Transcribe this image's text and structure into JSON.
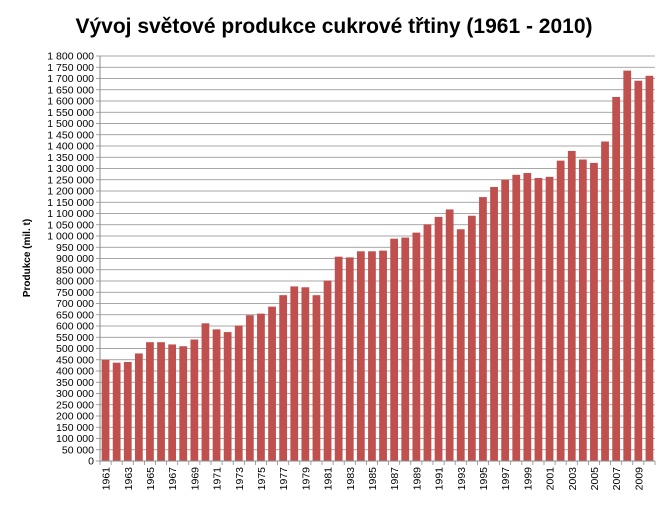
{
  "chart_data": {
    "type": "bar",
    "title": "Vývoj světové produkce cukrové třtiny (1961 - 2010)",
    "xlabel": "",
    "ylabel": "Produkce  (mil. t)",
    "ylim": [
      0,
      1800000
    ],
    "y_tick_step": 50000,
    "y_tick_labels": [
      "0",
      "50 000",
      "100 000",
      "150 000",
      "200 000",
      "250 000",
      "300 000",
      "350 000",
      "400 000",
      "450 000",
      "500 000",
      "550 000",
      "600 000",
      "650 000",
      "700 000",
      "750 000",
      "800 000",
      "850 000",
      "900 000",
      "950 000",
      "1 000 000",
      "1 050 000",
      "1 100 000",
      "1 150 000",
      "1 200 000",
      "1 250 000",
      "1 300 000",
      "1 350 000",
      "1 400 000",
      "1 450 000",
      "1 500 000",
      "1 550 000",
      "1 600 000",
      "1 650 000",
      "1 700 000",
      "1 750 000",
      "1 800 000"
    ],
    "categories": [
      "1961",
      "1962",
      "1963",
      "1964",
      "1965",
      "1966",
      "1967",
      "1968",
      "1969",
      "1970",
      "1971",
      "1972",
      "1973",
      "1974",
      "1975",
      "1976",
      "1977",
      "1978",
      "1979",
      "1980",
      "1981",
      "1982",
      "1983",
      "1984",
      "1985",
      "1986",
      "1987",
      "1988",
      "1989",
      "1990",
      "1991",
      "1992",
      "1993",
      "1994",
      "1995",
      "1996",
      "1997",
      "1998",
      "1999",
      "2000",
      "2001",
      "2002",
      "2003",
      "2004",
      "2005",
      "2006",
      "2007",
      "2008",
      "2009",
      "2010"
    ],
    "x_tick_labels": [
      "1961",
      "1963",
      "1965",
      "1967",
      "1969",
      "1971",
      "1973",
      "1975",
      "1977",
      "1979",
      "1981",
      "1983",
      "1985",
      "1987",
      "1989",
      "1991",
      "1993",
      "1995",
      "1997",
      "1999",
      "2001",
      "2003",
      "2005",
      "2007",
      "2009"
    ],
    "values": [
      450000,
      437000,
      440000,
      478000,
      528000,
      528000,
      518000,
      510000,
      540000,
      612000,
      585000,
      573000,
      602000,
      648000,
      655000,
      686000,
      737000,
      776000,
      772000,
      737000,
      802000,
      908000,
      905000,
      932000,
      932000,
      935000,
      988000,
      993000,
      1015000,
      1052000,
      1085000,
      1118000,
      1030000,
      1090000,
      1173000,
      1218000,
      1250000,
      1272000,
      1280000,
      1258000,
      1263000,
      1335000,
      1378000,
      1340000,
      1325000,
      1420000,
      1618000,
      1735000,
      1690000,
      1712000
    ],
    "bar_color": "#C0504D",
    "grid": true,
    "legend": "none"
  }
}
